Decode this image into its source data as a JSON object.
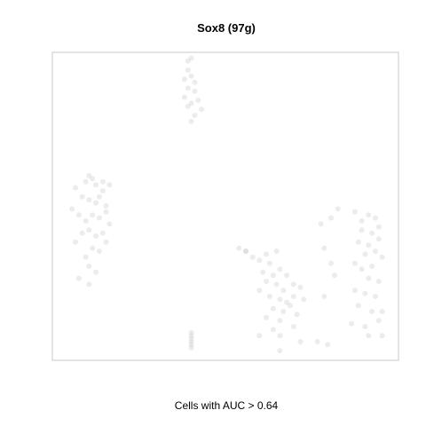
{
  "chart_data": {
    "type": "scatter",
    "title": "Sox8 (97g)",
    "xlabel": "Cells with AUC > 0.64",
    "ylabel": "",
    "axes_visible": false,
    "box": true,
    "point_color": "#c8c8c8",
    "point_opacity": 0.35,
    "xlim": [
      0,
      1
    ],
    "ylim": [
      0,
      1
    ],
    "points": [
      {
        "x": 0.39,
        "y": 0.98
      },
      {
        "x": 0.4,
        "y": 0.99
      },
      {
        "x": 0.39,
        "y": 0.95
      },
      {
        "x": 0.4,
        "y": 0.93
      },
      {
        "x": 0.38,
        "y": 0.92
      },
      {
        "x": 0.41,
        "y": 0.91
      },
      {
        "x": 0.39,
        "y": 0.89
      },
      {
        "x": 0.41,
        "y": 0.88
      },
      {
        "x": 0.38,
        "y": 0.86
      },
      {
        "x": 0.4,
        "y": 0.84
      },
      {
        "x": 0.42,
        "y": 0.85
      },
      {
        "x": 0.39,
        "y": 0.83
      },
      {
        "x": 0.43,
        "y": 0.82
      },
      {
        "x": 0.41,
        "y": 0.8
      },
      {
        "x": 0.4,
        "y": 0.78
      },
      {
        "x": 0.06,
        "y": 0.56
      },
      {
        "x": 0.09,
        "y": 0.58
      },
      {
        "x": 0.1,
        "y": 0.6
      },
      {
        "x": 0.11,
        "y": 0.59
      },
      {
        "x": 0.12,
        "y": 0.57
      },
      {
        "x": 0.14,
        "y": 0.55
      },
      {
        "x": 0.16,
        "y": 0.57
      },
      {
        "x": 0.08,
        "y": 0.53
      },
      {
        "x": 0.1,
        "y": 0.52
      },
      {
        "x": 0.12,
        "y": 0.51
      },
      {
        "x": 0.13,
        "y": 0.53
      },
      {
        "x": 0.15,
        "y": 0.5
      },
      {
        "x": 0.05,
        "y": 0.49
      },
      {
        "x": 0.07,
        "y": 0.47
      },
      {
        "x": 0.09,
        "y": 0.45
      },
      {
        "x": 0.11,
        "y": 0.47
      },
      {
        "x": 0.13,
        "y": 0.46
      },
      {
        "x": 0.15,
        "y": 0.48
      },
      {
        "x": 0.16,
        "y": 0.44
      },
      {
        "x": 0.08,
        "y": 0.41
      },
      {
        "x": 0.1,
        "y": 0.42
      },
      {
        "x": 0.12,
        "y": 0.4
      },
      {
        "x": 0.14,
        "y": 0.41
      },
      {
        "x": 0.06,
        "y": 0.38
      },
      {
        "x": 0.11,
        "y": 0.36
      },
      {
        "x": 0.13,
        "y": 0.35
      },
      {
        "x": 0.09,
        "y": 0.33
      },
      {
        "x": 0.1,
        "y": 0.3
      },
      {
        "x": 0.12,
        "y": 0.28
      },
      {
        "x": 0.07,
        "y": 0.26
      },
      {
        "x": 0.1,
        "y": 0.24
      },
      {
        "x": 0.15,
        "y": 0.38
      },
      {
        "x": 0.14,
        "y": 0.58
      },
      {
        "x": 0.56,
        "y": 0.35
      },
      {
        "x": 0.58,
        "y": 0.33
      },
      {
        "x": 0.6,
        "y": 0.32
      },
      {
        "x": 0.62,
        "y": 0.34
      },
      {
        "x": 0.65,
        "y": 0.35
      },
      {
        "x": 0.63,
        "y": 0.31
      },
      {
        "x": 0.61,
        "y": 0.28
      },
      {
        "x": 0.64,
        "y": 0.27
      },
      {
        "x": 0.66,
        "y": 0.29
      },
      {
        "x": 0.68,
        "y": 0.27
      },
      {
        "x": 0.62,
        "y": 0.25
      },
      {
        "x": 0.65,
        "y": 0.24
      },
      {
        "x": 0.67,
        "y": 0.22
      },
      {
        "x": 0.7,
        "y": 0.24
      },
      {
        "x": 0.72,
        "y": 0.23
      },
      {
        "x": 0.6,
        "y": 0.22
      },
      {
        "x": 0.63,
        "y": 0.2
      },
      {
        "x": 0.66,
        "y": 0.19
      },
      {
        "x": 0.68,
        "y": 0.18
      },
      {
        "x": 0.7,
        "y": 0.2
      },
      {
        "x": 0.73,
        "y": 0.19
      },
      {
        "x": 0.64,
        "y": 0.16
      },
      {
        "x": 0.67,
        "y": 0.15
      },
      {
        "x": 0.69,
        "y": 0.17
      },
      {
        "x": 0.62,
        "y": 0.13
      },
      {
        "x": 0.66,
        "y": 0.12
      },
      {
        "x": 0.71,
        "y": 0.14
      },
      {
        "x": 0.64,
        "y": 0.09
      },
      {
        "x": 0.7,
        "y": 0.1
      },
      {
        "x": 0.66,
        "y": 0.07
      },
      {
        "x": 0.6,
        "y": 0.07
      },
      {
        "x": 0.72,
        "y": 0.05
      },
      {
        "x": 0.66,
        "y": 0.02
      },
      {
        "x": 0.78,
        "y": 0.44
      },
      {
        "x": 0.81,
        "y": 0.46
      },
      {
        "x": 0.83,
        "y": 0.49
      },
      {
        "x": 0.79,
        "y": 0.36
      },
      {
        "x": 0.81,
        "y": 0.31
      },
      {
        "x": 0.82,
        "y": 0.27
      },
      {
        "x": 0.79,
        "y": 0.2
      },
      {
        "x": 0.77,
        "y": 0.05
      },
      {
        "x": 0.8,
        "y": 0.04
      },
      {
        "x": 0.88,
        "y": 0.48
      },
      {
        "x": 0.9,
        "y": 0.45
      },
      {
        "x": 0.92,
        "y": 0.47
      },
      {
        "x": 0.94,
        "y": 0.46
      },
      {
        "x": 0.9,
        "y": 0.42
      },
      {
        "x": 0.93,
        "y": 0.41
      },
      {
        "x": 0.95,
        "y": 0.43
      },
      {
        "x": 0.89,
        "y": 0.38
      },
      {
        "x": 0.92,
        "y": 0.37
      },
      {
        "x": 0.95,
        "y": 0.39
      },
      {
        "x": 0.91,
        "y": 0.34
      },
      {
        "x": 0.94,
        "y": 0.35
      },
      {
        "x": 0.96,
        "y": 0.33
      },
      {
        "x": 0.88,
        "y": 0.31
      },
      {
        "x": 0.9,
        "y": 0.29
      },
      {
        "x": 0.93,
        "y": 0.3
      },
      {
        "x": 0.92,
        "y": 0.26
      },
      {
        "x": 0.95,
        "y": 0.25
      },
      {
        "x": 0.88,
        "y": 0.22
      },
      {
        "x": 0.91,
        "y": 0.21
      },
      {
        "x": 0.94,
        "y": 0.2
      },
      {
        "x": 0.89,
        "y": 0.17
      },
      {
        "x": 0.93,
        "y": 0.15
      },
      {
        "x": 0.96,
        "y": 0.15
      },
      {
        "x": 0.87,
        "y": 0.11
      },
      {
        "x": 0.91,
        "y": 0.1
      },
      {
        "x": 0.95,
        "y": 0.12
      },
      {
        "x": 0.92,
        "y": 0.07
      },
      {
        "x": 0.96,
        "y": 0.07
      },
      {
        "x": 0.56,
        "y": 0.35
      },
      {
        "x": 0.54,
        "y": 0.36
      },
      {
        "x": 0.4,
        "y": 0.08
      },
      {
        "x": 0.4,
        "y": 0.07
      },
      {
        "x": 0.4,
        "y": 0.06
      },
      {
        "x": 0.4,
        "y": 0.05
      },
      {
        "x": 0.4,
        "y": 0.04
      },
      {
        "x": 0.4,
        "y": 0.03
      }
    ]
  }
}
